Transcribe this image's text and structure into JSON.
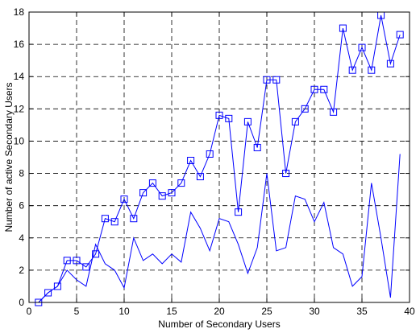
{
  "chart_data": {
    "type": "line",
    "title": "",
    "xlabel": "Number of Secondary Users",
    "ylabel": "Number of active Secondary Users",
    "xlim": [
      0,
      40
    ],
    "ylim": [
      0,
      18
    ],
    "xticks": [
      0,
      5,
      10,
      15,
      20,
      25,
      30,
      35,
      40
    ],
    "yticks": [
      0,
      2,
      4,
      6,
      8,
      10,
      12,
      14,
      16,
      18
    ],
    "grid": true,
    "line_color": "#0000ff",
    "series": [
      {
        "marker": "square",
        "x": [
          1,
          2,
          3,
          4,
          5,
          6,
          7,
          8,
          9,
          10,
          11,
          12,
          13,
          14,
          15,
          16,
          17,
          18,
          19,
          20,
          21,
          22,
          23,
          24,
          25,
          26,
          27,
          28,
          29,
          30,
          31,
          32,
          33,
          34,
          35,
          36,
          37,
          38,
          39
        ],
        "values": [
          0,
          0.6,
          1.0,
          2.6,
          2.6,
          2.2,
          3.0,
          5.2,
          5.0,
          6.4,
          5.2,
          6.8,
          7.4,
          6.6,
          6.8,
          7.4,
          8.8,
          7.8,
          9.2,
          11.6,
          11.4,
          5.6,
          11.2,
          9.6,
          13.8,
          13.8,
          8.0,
          11.2,
          12.0,
          13.2,
          13.2,
          11.8,
          17.0,
          14.4,
          15.8,
          14.4,
          17.8,
          14.8,
          16.6
        ]
      },
      {
        "marker": "none",
        "x": [
          1,
          2,
          3,
          4,
          5,
          6,
          7,
          8,
          9,
          10,
          11,
          12,
          13,
          14,
          15,
          16,
          17,
          18,
          19,
          20,
          21,
          22,
          23,
          24,
          25,
          26,
          27,
          28,
          29,
          30,
          31,
          32,
          33,
          34,
          35,
          36,
          37,
          38,
          39
        ],
        "values": [
          0,
          0.6,
          1.0,
          2.0,
          1.4,
          1.0,
          3.6,
          2.4,
          2.0,
          0.9,
          4.0,
          2.6,
          3.0,
          2.4,
          3.0,
          2.5,
          5.6,
          4.6,
          3.2,
          5.2,
          5.0,
          3.6,
          1.8,
          3.4,
          8.0,
          3.2,
          3.4,
          6.6,
          6.4,
          5.0,
          6.2,
          3.4,
          3.0,
          1.0,
          1.6,
          7.4,
          4.0,
          0.3,
          9.2
        ]
      }
    ]
  }
}
